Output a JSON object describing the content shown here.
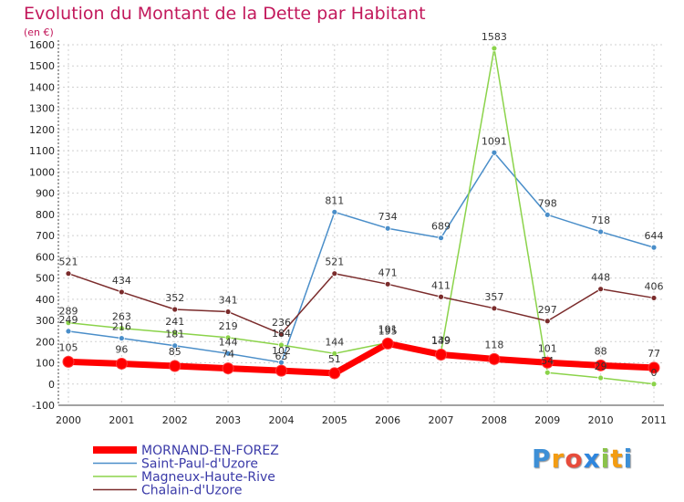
{
  "title": "Evolution du Montant de la Dette par Habitant",
  "subtitle": "(en €)",
  "brand": {
    "letters": [
      "P",
      "r",
      "o",
      "x",
      "i",
      "t",
      "i"
    ],
    "colors": [
      "#3d8fd6",
      "#f39c12",
      "#e74c3c",
      "#2e86de",
      "#8bc34a",
      "#f39c12",
      "#3d8fd6"
    ]
  },
  "chart_data": {
    "type": "line",
    "title": "Evolution du Montant de la Dette par Habitant",
    "ylabel": "(en €)",
    "xlabel": "",
    "x": [
      "2000",
      "2001",
      "2002",
      "2003",
      "2004",
      "2005",
      "2006",
      "2007",
      "2008",
      "2009",
      "2010",
      "2011"
    ],
    "ylim": [
      -100,
      1600
    ],
    "yticks": [
      "-100",
      "0",
      "100",
      "200",
      "300",
      "400",
      "500",
      "600",
      "700",
      "800",
      "900",
      "1000",
      "1100",
      "1200",
      "1300",
      "1400",
      "1500",
      "1600"
    ],
    "grid": true,
    "legend_position": "bottom-left",
    "series": [
      {
        "name": "Saint-Paul-d'Uzore",
        "color": "#4a8ec9",
        "values": [
          249,
          216,
          181,
          144,
          102,
          811,
          734,
          689,
          1091,
          798,
          718,
          644
        ],
        "labels": [
          "249",
          "216",
          "181",
          "144",
          "102",
          "811",
          "734",
          "689",
          "1091",
          "798",
          "718",
          "644"
        ]
      },
      {
        "name": "Magneux-Haute-Rive",
        "color": "#8bd34a",
        "values": [
          289,
          263,
          241,
          219,
          184,
          144,
          195,
          149,
          1583,
          54,
          29,
          0
        ],
        "labels": [
          "289",
          "263",
          "241",
          "219",
          "184",
          "144",
          "195",
          "149",
          "1583",
          "54",
          "29",
          "0"
        ]
      },
      {
        "name": "Chalain-d'Uzore",
        "color": "#7b2c2c",
        "values": [
          521,
          434,
          352,
          341,
          236,
          521,
          471,
          411,
          357,
          297,
          448,
          406
        ],
        "labels": [
          "521",
          "434",
          "352",
          "341",
          "236",
          "521",
          "471",
          "411",
          "357",
          "297",
          "448",
          "406"
        ]
      },
      {
        "name": "MORNAND-EN-FOREZ",
        "color": "#ff0000",
        "values": [
          105,
          96,
          85,
          74,
          63,
          51,
          191,
          139,
          118,
          101,
          88,
          77
        ],
        "labels": [
          "105",
          "96",
          "85",
          "74",
          "63",
          "51",
          "191",
          "139",
          "118",
          "101",
          "88",
          "77"
        ]
      }
    ],
    "legend": [
      {
        "name": "MORNAND-EN-FOREZ",
        "color": "#ff0000",
        "text_color": "#3a3aa8"
      },
      {
        "name": "Saint-Paul-d'Uzore",
        "color": "#4a8ec9",
        "text_color": "#3a3aa8"
      },
      {
        "name": "Magneux-Haute-Rive",
        "color": "#8bd34a",
        "text_color": "#3a3aa8"
      },
      {
        "name": "Chalain-d'Uzore",
        "color": "#7b2c2c",
        "text_color": "#3a3aa8"
      }
    ]
  }
}
